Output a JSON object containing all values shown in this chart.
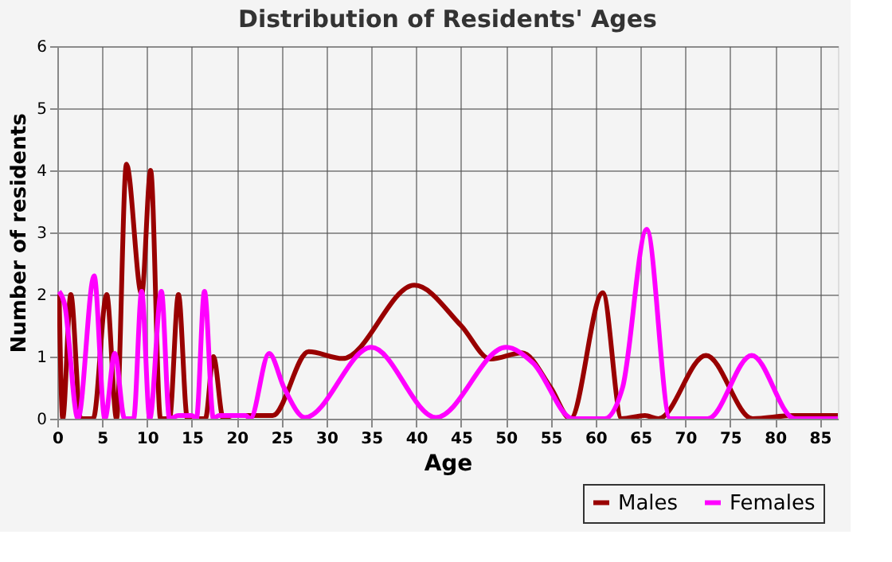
{
  "chart_data": {
    "type": "line",
    "title": "Distribution of Residents' Ages",
    "xlabel": "Age",
    "ylabel": "Number of residents",
    "xlim": [
      0,
      87
    ],
    "xticks": [
      0,
      5,
      10,
      15,
      20,
      25,
      30,
      35,
      40,
      45,
      50,
      55,
      60,
      65,
      70,
      75,
      80,
      85
    ],
    "ylim": [
      0,
      6
    ],
    "yticks": [
      0,
      1,
      2,
      3,
      4,
      5,
      6
    ],
    "grid": true,
    "legend": "bottom right",
    "series": [
      {
        "name": "Males",
        "color": "#990000",
        "x": [
          0.2,
          0.6,
          1.5,
          2.6,
          4,
          5.5,
          6.6,
          7.7,
          9.4,
          10.4,
          11.5,
          12.5,
          13.5,
          14.5,
          16.5,
          17.4,
          18.5,
          19.5,
          24,
          28,
          31.8,
          39.8,
          45,
          48.3,
          51.8,
          55,
          57.2,
          60.8,
          62.9,
          65.5,
          67,
          72.3,
          77.5,
          82,
          87
        ],
        "values": [
          2,
          0,
          2,
          0,
          0,
          2,
          0,
          4.1,
          2,
          4,
          0,
          0,
          2,
          0,
          0,
          1,
          0,
          0.05,
          0.05,
          1.08,
          0.97,
          2.15,
          1.5,
          0.96,
          1.06,
          0.5,
          0,
          2.03,
          0,
          0.05,
          0,
          1.02,
          0,
          0.05,
          0.05
        ]
      },
      {
        "name": "Females",
        "color": "#ff00ff",
        "x": [
          0.2,
          0.8,
          2.3,
          4.1,
          5.3,
          6.4,
          7.5,
          8.5,
          9.4,
          10.3,
          11.6,
          12.5,
          13.5,
          15,
          15.5,
          16.4,
          17.4,
          18,
          21,
          21.5,
          23.6,
          25.3,
          27.6,
          35,
          42.2,
          50,
          53,
          57.5,
          61,
          63,
          65.7,
          68.3,
          72.5,
          77.4,
          82.2,
          87
        ],
        "values": [
          2.05,
          1.85,
          0,
          2.3,
          0,
          1.05,
          0,
          0,
          2.05,
          0,
          2.05,
          0,
          0.05,
          0.05,
          0,
          2.05,
          0,
          0.05,
          0.05,
          0,
          1.05,
          0.49,
          0.02,
          1.15,
          0.02,
          1.15,
          0.9,
          0,
          0,
          0.5,
          3.05,
          0,
          0,
          1.02,
          0,
          0
        ]
      }
    ]
  }
}
